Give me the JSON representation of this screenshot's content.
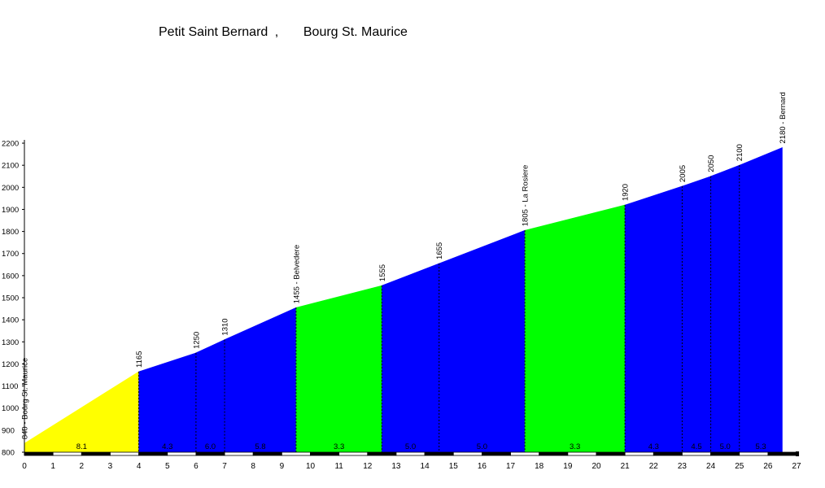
{
  "title": {
    "part1": "Petit Saint Bernard",
    "sep": ",",
    "part2": "Bourg St. Maurice"
  },
  "chart_data": {
    "type": "area",
    "title": "Petit Saint Bernard , Bourg St. Maurice",
    "xlabel": "",
    "ylabel": "",
    "xlim": [
      0,
      27
    ],
    "ylim": [
      800,
      2200
    ],
    "x_ticks": [
      0,
      1,
      2,
      3,
      4,
      5,
      6,
      7,
      8,
      9,
      10,
      11,
      12,
      13,
      14,
      15,
      16,
      17,
      18,
      19,
      20,
      21,
      22,
      23,
      24,
      25,
      26,
      27
    ],
    "y_ticks": [
      800,
      900,
      1000,
      1100,
      1200,
      1300,
      1400,
      1500,
      1600,
      1700,
      1800,
      1900,
      2000,
      2100,
      2200
    ],
    "grid": false,
    "points": [
      {
        "x": 0,
        "y": 840,
        "label": "840 - Bourg St. Maurice"
      },
      {
        "x": 4,
        "y": 1165,
        "label": "1165"
      },
      {
        "x": 6,
        "y": 1250,
        "label": "1250"
      },
      {
        "x": 7,
        "y": 1310,
        "label": "1310"
      },
      {
        "x": 9.5,
        "y": 1455,
        "label": "1455 - Belvedere"
      },
      {
        "x": 12.5,
        "y": 1555,
        "label": "1555"
      },
      {
        "x": 14.5,
        "y": 1655,
        "label": "1655"
      },
      {
        "x": 17.5,
        "y": 1805,
        "label": "1805 - La Rosiere"
      },
      {
        "x": 21,
        "y": 1920,
        "label": "1920"
      },
      {
        "x": 23,
        "y": 2005,
        "label": "2005"
      },
      {
        "x": 24,
        "y": 2050,
        "label": "2050"
      },
      {
        "x": 25,
        "y": 2100,
        "label": "2100"
      },
      {
        "x": 26.5,
        "y": 2180,
        "label": "2180 - Bernard"
      }
    ],
    "segments": [
      {
        "from": 0,
        "to": 4,
        "gradient": "8.1",
        "color": "#ffff00"
      },
      {
        "from": 4,
        "to": 6,
        "gradient": "4.3",
        "color": "#0000ff"
      },
      {
        "from": 6,
        "to": 7,
        "gradient": "6.0",
        "color": "#0000ff"
      },
      {
        "from": 7,
        "to": 9.5,
        "gradient": "5.8",
        "color": "#0000ff"
      },
      {
        "from": 9.5,
        "to": 12.5,
        "gradient": "3.3",
        "color": "#00ff00"
      },
      {
        "from": 12.5,
        "to": 14.5,
        "gradient": "5.0",
        "color": "#0000ff"
      },
      {
        "from": 14.5,
        "to": 17.5,
        "gradient": "5.0",
        "color": "#0000ff"
      },
      {
        "from": 17.5,
        "to": 21,
        "gradient": "3.3",
        "color": "#00ff00"
      },
      {
        "from": 21,
        "to": 23,
        "gradient": "4.3",
        "color": "#0000ff"
      },
      {
        "from": 23,
        "to": 24,
        "gradient": "4.5",
        "color": "#0000ff"
      },
      {
        "from": 24,
        "to": 25,
        "gradient": "5.0",
        "color": "#0000ff"
      },
      {
        "from": 25,
        "to": 26.5,
        "gradient": "5.3",
        "color": "#0000ff"
      }
    ]
  }
}
